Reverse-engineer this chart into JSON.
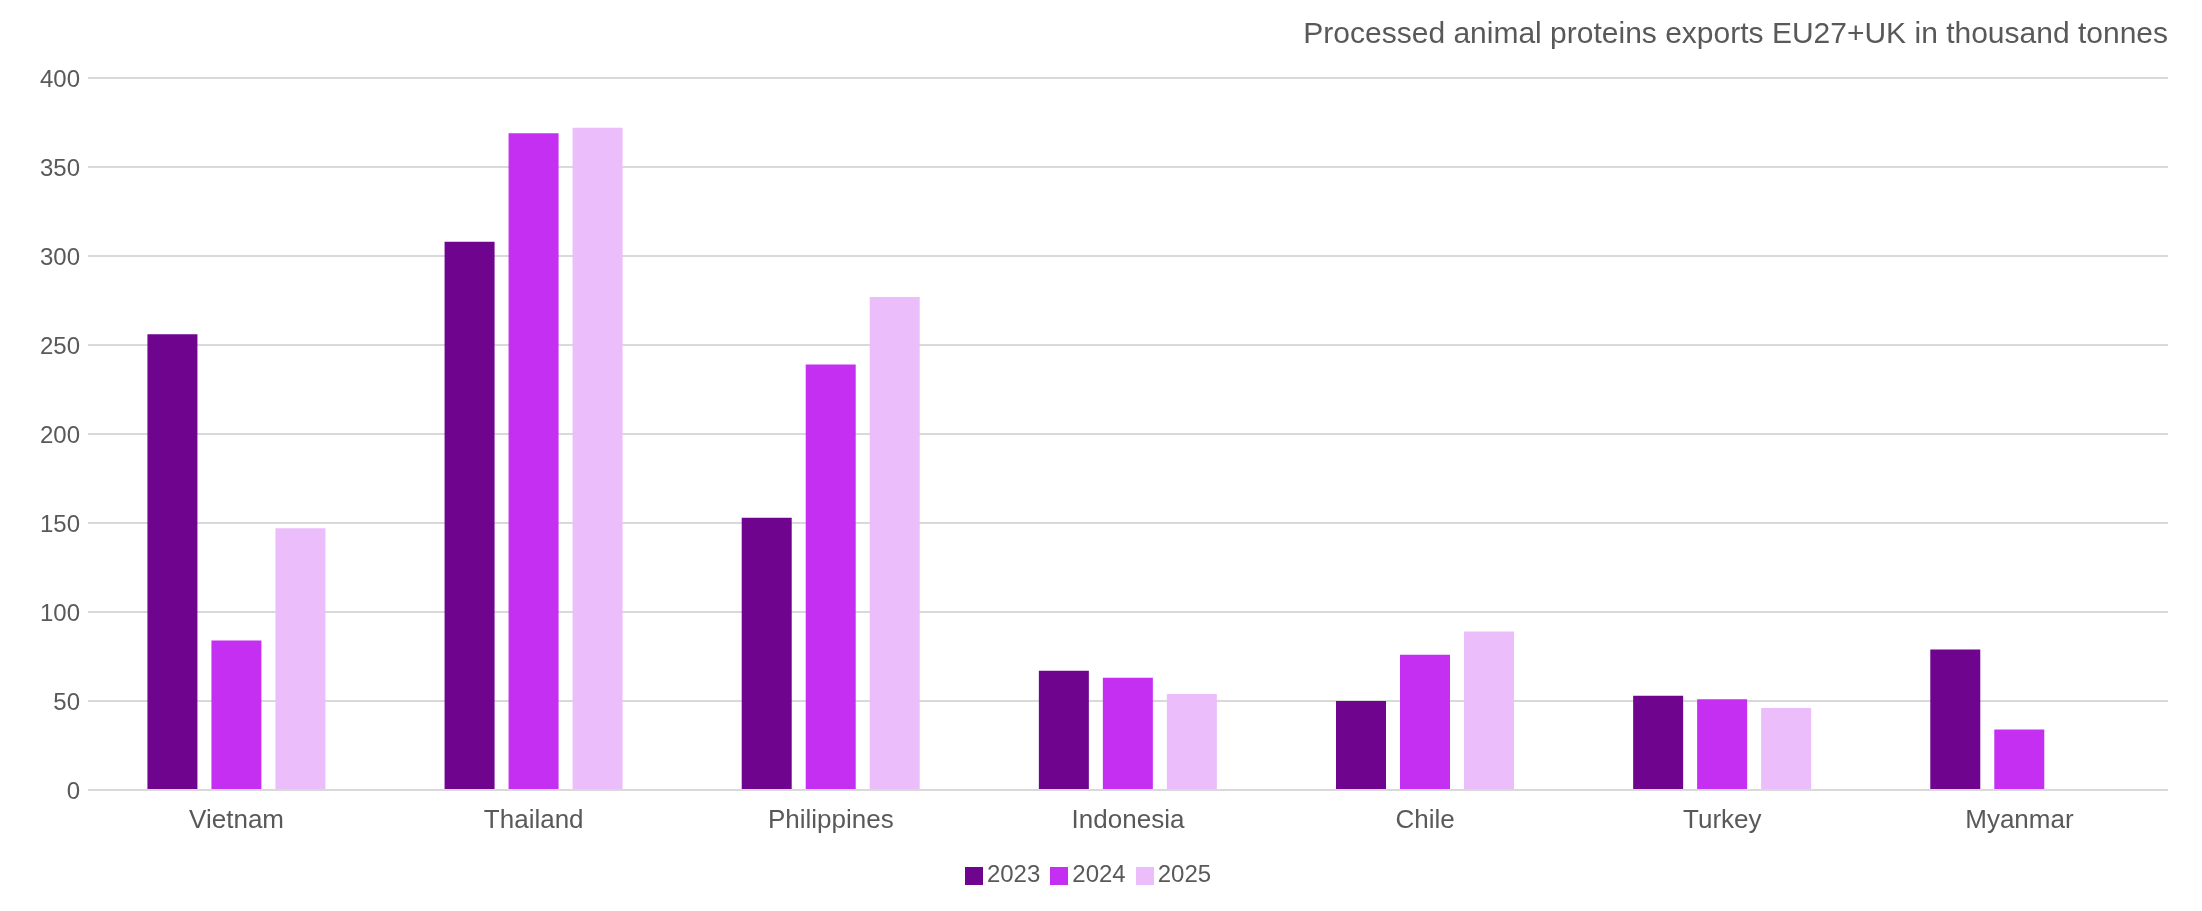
{
  "chart_data": {
    "type": "bar",
    "title": "Processed animal proteins exports EU27+UK in thousand tonnes",
    "categories": [
      "Vietnam",
      "Thailand",
      "Philippines",
      "Indonesia",
      "Chile",
      "Turkey",
      "Myanmar"
    ],
    "series": [
      {
        "name": "2023",
        "color": "#6f058f",
        "values": [
          256,
          308,
          153,
          67,
          50,
          53,
          79
        ]
      },
      {
        "name": "2024",
        "color": "#c42ff2",
        "values": [
          84,
          369,
          239,
          63,
          76,
          51,
          34
        ]
      },
      {
        "name": "2025",
        "color": "#ebbdfa",
        "values": [
          147,
          372,
          277,
          54,
          89,
          46,
          null
        ]
      }
    ],
    "ylim": [
      0,
      400
    ],
    "yticks": [
      0,
      50,
      100,
      150,
      200,
      250,
      300,
      350,
      400
    ],
    "grid": "y",
    "legend": "bottom"
  }
}
